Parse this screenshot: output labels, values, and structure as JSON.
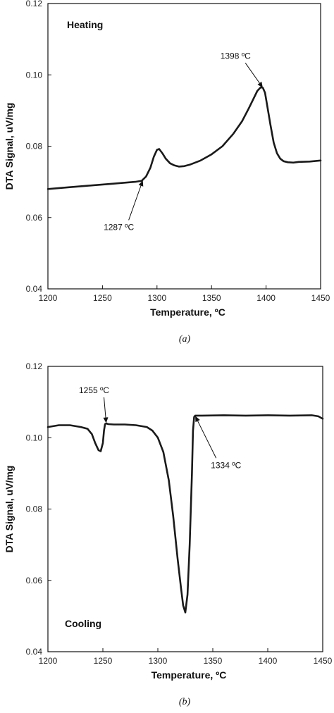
{
  "chart_data": [
    {
      "type": "line",
      "panel_label": "Heating",
      "caption": "(a)",
      "xlabel": "Temperature, ºC",
      "ylabel": "DTA Signal, uV/mg",
      "xlim": [
        1200,
        1450
      ],
      "ylim": [
        0.04,
        0.12
      ],
      "xticks": [
        "1200",
        "1250",
        "1300",
        "1350",
        "1400",
        "1450"
      ],
      "yticks": [
        "0.04",
        "0.06",
        "0.08",
        "0.10",
        "0.12"
      ],
      "series": [
        {
          "x": [
            1200,
            1220,
            1240,
            1260,
            1280,
            1286,
            1290,
            1294,
            1297,
            1300,
            1302,
            1305,
            1308,
            1312,
            1316,
            1320,
            1325,
            1330,
            1340,
            1350,
            1360,
            1370,
            1378,
            1384,
            1388,
            1392,
            1395,
            1397,
            1399,
            1401,
            1404,
            1407,
            1410,
            1413,
            1416,
            1420,
            1425,
            1430,
            1440,
            1450
          ],
          "y": [
            0.068,
            0.0685,
            0.069,
            0.0695,
            0.07,
            0.0703,
            0.0715,
            0.074,
            0.077,
            0.079,
            0.0792,
            0.078,
            0.0765,
            0.0752,
            0.0746,
            0.0743,
            0.0744,
            0.0748,
            0.076,
            0.0777,
            0.08,
            0.0835,
            0.087,
            0.0905,
            0.093,
            0.0955,
            0.0965,
            0.0964,
            0.095,
            0.0915,
            0.086,
            0.081,
            0.078,
            0.0765,
            0.0758,
            0.0755,
            0.0754,
            0.0756,
            0.0757,
            0.076
          ]
        }
      ],
      "annotations": [
        {
          "label": "1398 ºC",
          "x": 1397,
          "y": 0.0964,
          "text_x": 1372,
          "text_y": 0.1045
        },
        {
          "label": "1287 ºC",
          "x": 1287,
          "y": 0.0704,
          "text_x": 1265,
          "text_y": 0.0565
        }
      ]
    },
    {
      "type": "line",
      "panel_label": "Cooling",
      "caption": "(b)",
      "xlabel": "Temperature, ºC",
      "ylabel": "DTA Signal, uV/mg",
      "xlim": [
        1200,
        1450
      ],
      "ylim": [
        0.04,
        0.12
      ],
      "xticks": [
        "1200",
        "1250",
        "1300",
        "1350",
        "1400",
        "1450"
      ],
      "yticks": [
        "0.04",
        "0.06",
        "0.08",
        "0.10",
        "0.12"
      ],
      "series": [
        {
          "x": [
            1200,
            1210,
            1220,
            1230,
            1236,
            1240,
            1243,
            1246,
            1248,
            1250,
            1251,
            1252,
            1253,
            1255,
            1260,
            1270,
            1280,
            1290,
            1295,
            1300,
            1305,
            1310,
            1314,
            1318,
            1321,
            1323,
            1325,
            1327,
            1329,
            1331,
            1332,
            1333,
            1334,
            1336,
            1340,
            1360,
            1380,
            1400,
            1420,
            1440,
            1446,
            1450
          ],
          "y": [
            0.103,
            0.1035,
            0.1035,
            0.103,
            0.1025,
            0.101,
            0.0985,
            0.0965,
            0.0962,
            0.0985,
            0.102,
            0.1038,
            0.104,
            0.1038,
            0.1037,
            0.1037,
            0.1035,
            0.103,
            0.102,
            0.1,
            0.096,
            0.088,
            0.078,
            0.066,
            0.058,
            0.053,
            0.051,
            0.056,
            0.07,
            0.09,
            0.102,
            0.1058,
            0.1062,
            0.1062,
            0.1062,
            0.1063,
            0.1062,
            0.1063,
            0.1062,
            0.1063,
            0.106,
            0.1053
          ]
        }
      ],
      "annotations": [
        {
          "label": "1255 ºC",
          "x": 1253,
          "y": 0.1041,
          "text_x": 1242,
          "text_y": 0.1125
        },
        {
          "label": "1334 ºC",
          "x": 1334,
          "y": 0.1061,
          "text_x": 1362,
          "text_y": 0.0915
        }
      ]
    }
  ]
}
